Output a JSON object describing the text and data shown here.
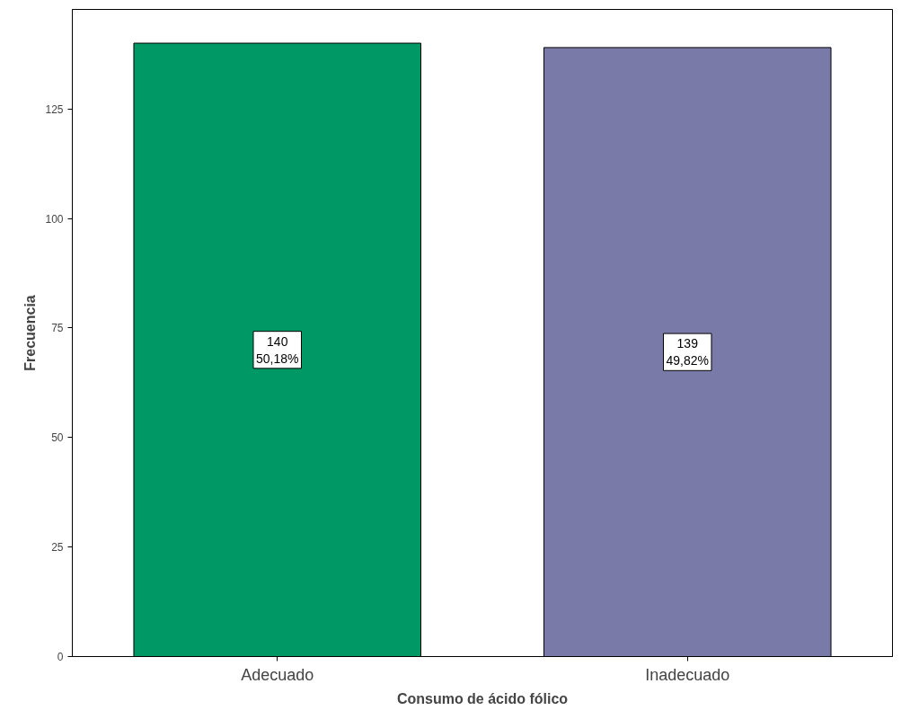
{
  "chart_data": {
    "type": "bar",
    "xlabel": "Consumo de ácido fólico",
    "ylabel": "Frecuencia",
    "categories": [
      "Adecuado",
      "Inadecuado"
    ],
    "values": [
      140,
      139
    ],
    "colors": [
      "#009966",
      "#7a7aa8"
    ],
    "value_labels": [
      "140\n50,18%",
      "139\n49,82%"
    ],
    "ylim": [
      0,
      147.7
    ],
    "yticks": [
      0,
      25,
      50,
      75,
      100,
      125
    ],
    "grid": false
  }
}
